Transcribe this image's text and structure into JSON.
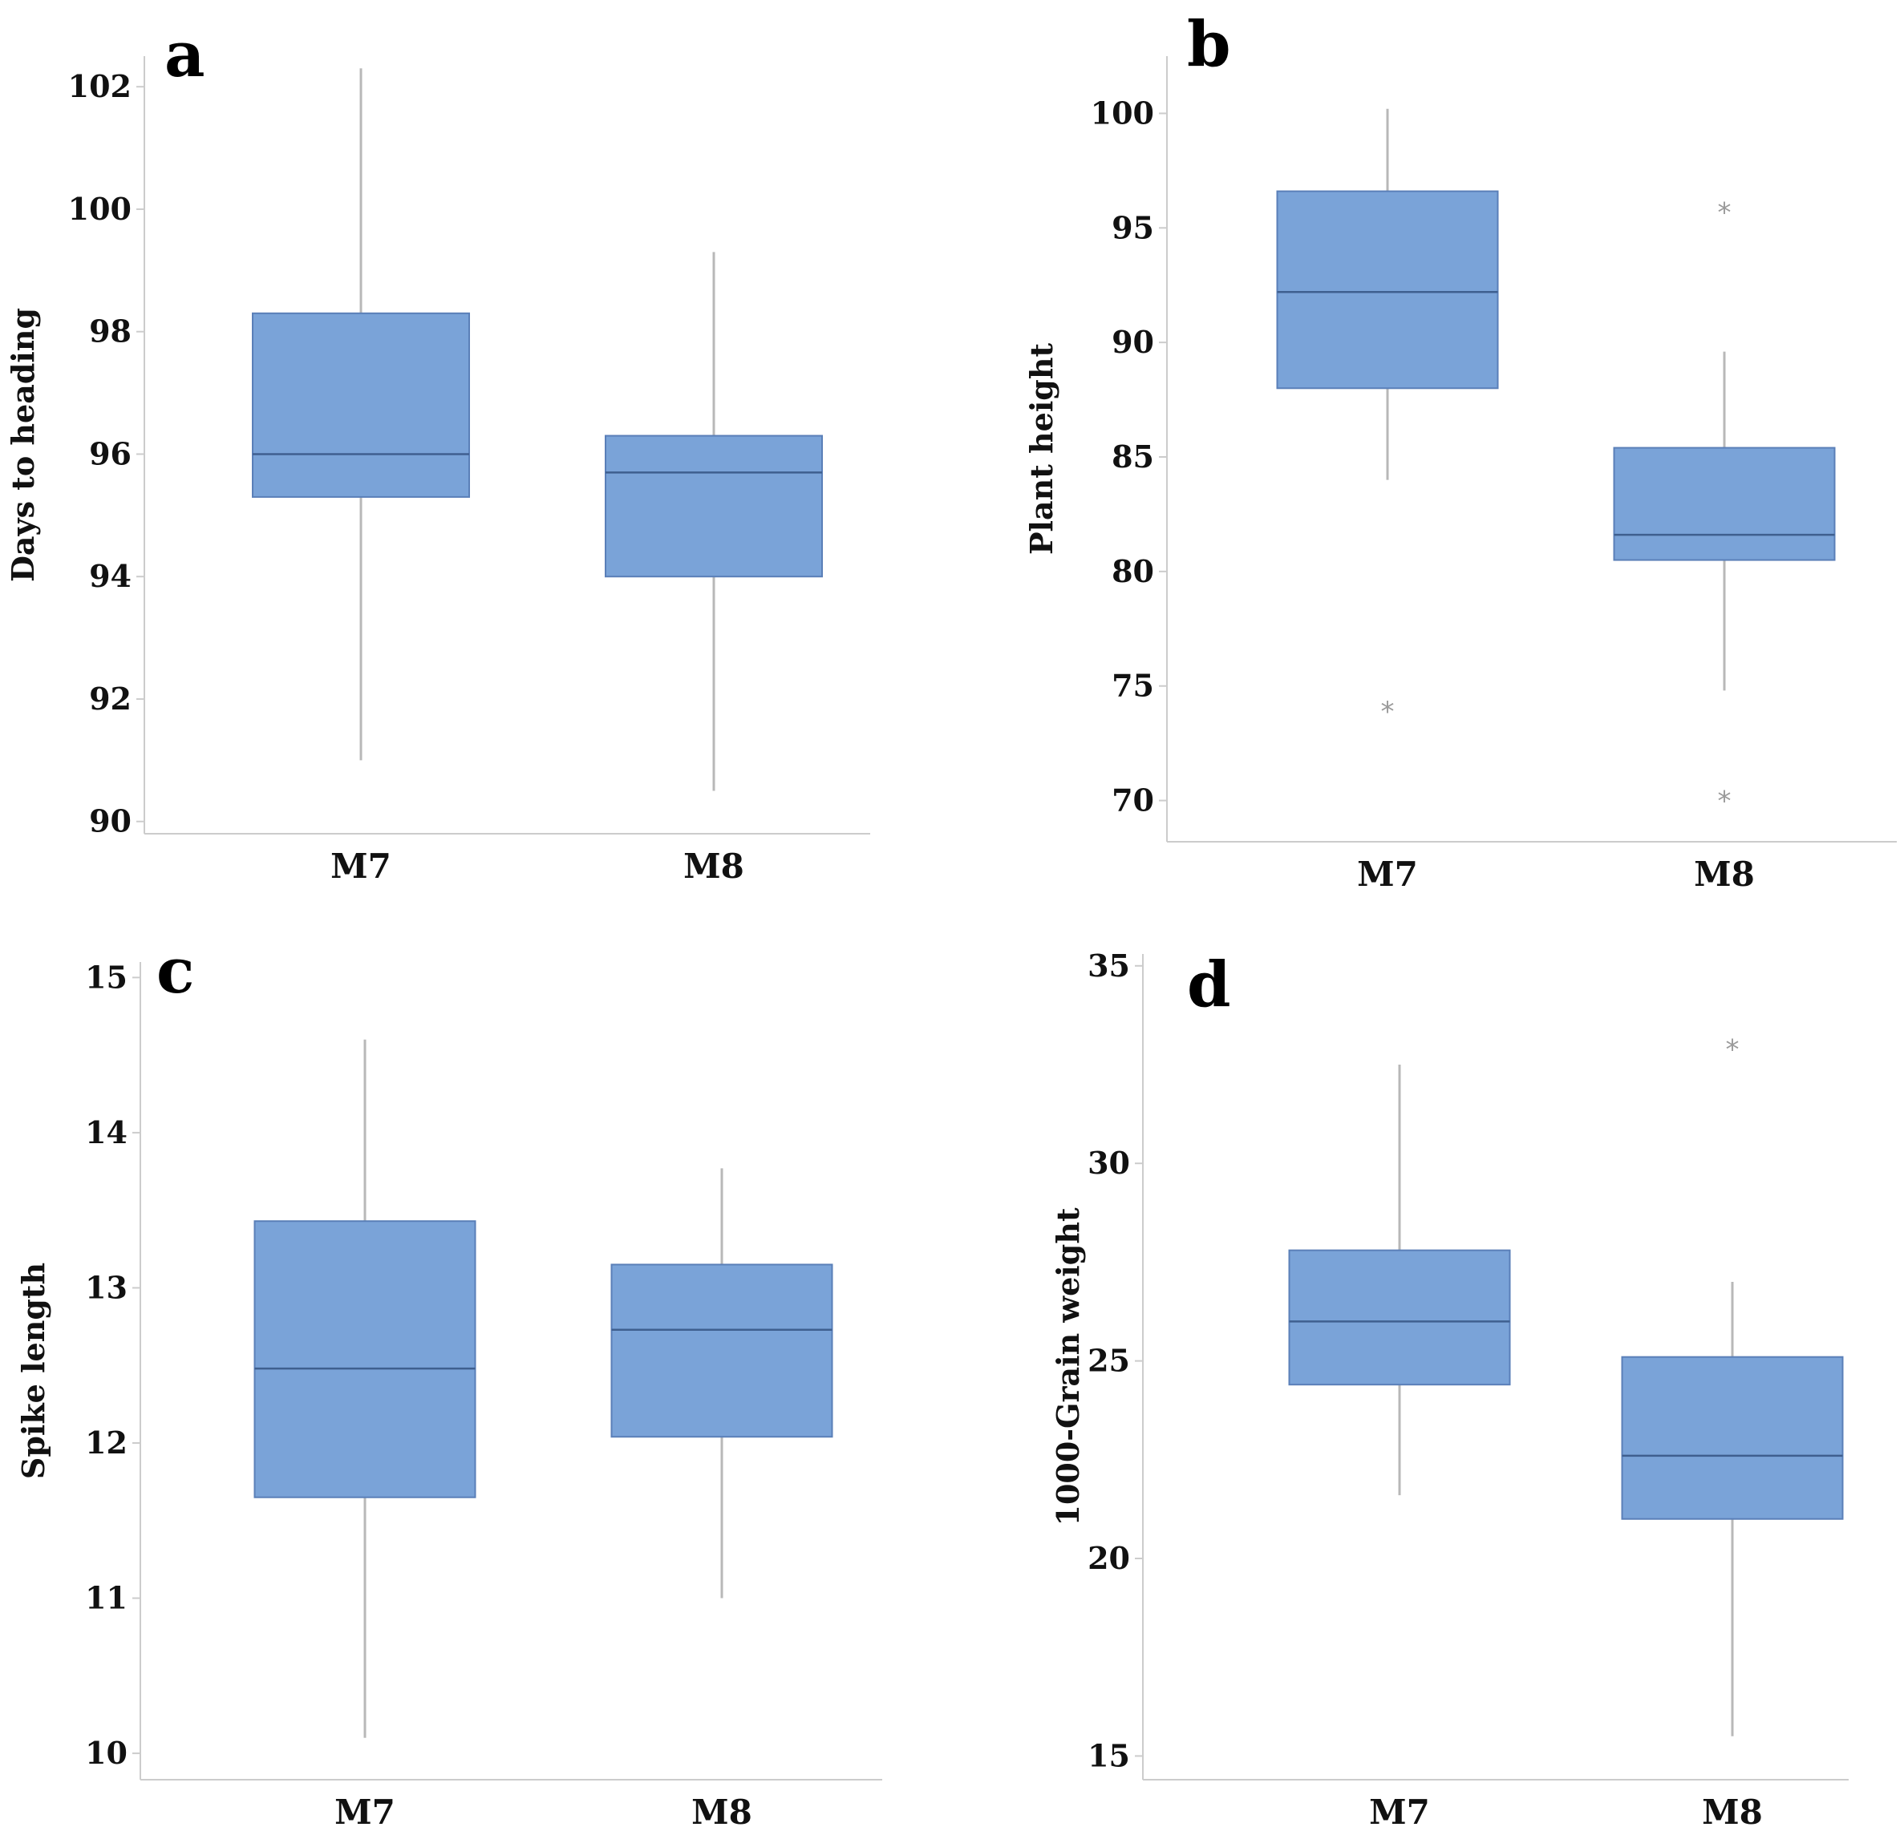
{
  "figure": {
    "box_color": "#7aa3d8",
    "whisker_color": "#b8b8b8",
    "outlier_color": "#9a9a9a"
  },
  "chart_data": [
    {
      "type": "box",
      "panel_label": "a",
      "ylabel": "Days to heading",
      "xlabel": "",
      "categories": [
        "M7",
        "M8"
      ],
      "ylim": [
        89.8,
        102.5
      ],
      "yticks": [
        90,
        92,
        94,
        96,
        98,
        100,
        102
      ],
      "boxes": [
        {
          "name": "M7",
          "whisker_low": 91.0,
          "q1": 95.3,
          "median": 96.0,
          "q3": 98.3,
          "whisker_high": 102.3,
          "outliers": []
        },
        {
          "name": "M8",
          "whisker_low": 90.5,
          "q1": 94.0,
          "median": 95.7,
          "q3": 96.3,
          "whisker_high": 99.3,
          "outliers": []
        }
      ]
    },
    {
      "type": "box",
      "panel_label": "b",
      "ylabel": "Plant height",
      "xlabel": "",
      "categories": [
        "M7",
        "M8"
      ],
      "ylim": [
        68.2,
        102.5
      ],
      "yticks": [
        70,
        75,
        80,
        85,
        90,
        95,
        100
      ],
      "boxes": [
        {
          "name": "M7",
          "whisker_low": 84.0,
          "q1": 88.0,
          "median": 92.2,
          "q3": 96.6,
          "whisker_high": 100.2,
          "outliers": [
            73.9
          ]
        },
        {
          "name": "M8",
          "whisker_low": 74.8,
          "q1": 80.5,
          "median": 81.6,
          "q3": 85.4,
          "whisker_high": 89.6,
          "outliers": [
            95.7,
            70.0
          ]
        }
      ]
    },
    {
      "type": "box",
      "panel_label": "c",
      "ylabel": "Spike length",
      "xlabel": "",
      "categories": [
        "M7",
        "M8"
      ],
      "ylim": [
        9.83,
        15.1
      ],
      "yticks": [
        10,
        11,
        12,
        13,
        14,
        15
      ],
      "boxes": [
        {
          "name": "M7",
          "whisker_low": 10.1,
          "q1": 11.65,
          "median": 12.48,
          "q3": 13.43,
          "whisker_high": 14.6,
          "outliers": []
        },
        {
          "name": "M8",
          "whisker_low": 11.0,
          "q1": 12.04,
          "median": 12.73,
          "q3": 13.15,
          "whisker_high": 13.77,
          "outliers": []
        }
      ]
    },
    {
      "type": "box",
      "panel_label": "d",
      "ylabel": "1000-Grain weight",
      "xlabel": "",
      "categories": [
        "M7",
        "M8"
      ],
      "ylim": [
        14.4,
        35.3
      ],
      "yticks": [
        15,
        20,
        25,
        30,
        35
      ],
      "boxes": [
        {
          "name": "M7",
          "whisker_low": 21.6,
          "q1": 24.4,
          "median": 26.0,
          "q3": 27.8,
          "whisker_high": 32.5,
          "outliers": []
        },
        {
          "name": "M8",
          "whisker_low": 15.5,
          "q1": 21.0,
          "median": 22.6,
          "q3": 25.1,
          "whisker_high": 27.0,
          "outliers": [
            32.9
          ]
        }
      ]
    }
  ]
}
